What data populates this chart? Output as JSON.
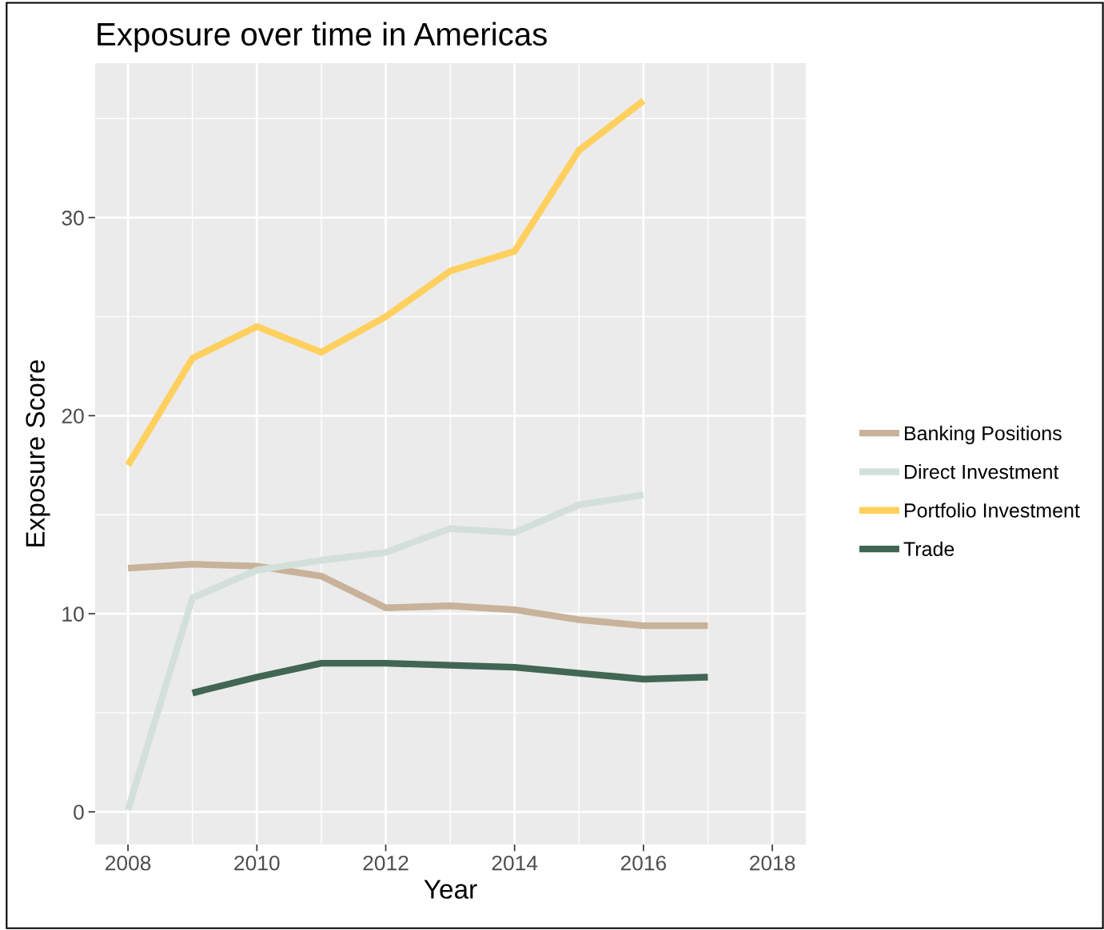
{
  "chart_data": {
    "type": "line",
    "title": "Exposure over time in Americas",
    "xlabel": "Year",
    "ylabel": "Exposure Score",
    "series": [
      {
        "name": "Banking Positions",
        "color": "#c8b29a",
        "x": [
          2008,
          2009,
          2010,
          2011,
          2012,
          2013,
          2014,
          2015,
          2016,
          2017
        ],
        "values": [
          12.3,
          12.5,
          12.4,
          11.9,
          10.3,
          10.4,
          10.2,
          9.7,
          9.4,
          9.4
        ]
      },
      {
        "name": "Direct Investment",
        "color": "#d3dfdb",
        "x": [
          2008,
          2009,
          2010,
          2011,
          2012,
          2013,
          2014,
          2015,
          2016
        ],
        "values": [
          0.1,
          10.8,
          12.2,
          12.7,
          13.1,
          14.3,
          14.1,
          15.5,
          16.0
        ]
      },
      {
        "name": "Portfolio Investment",
        "color": "#ffd05e",
        "x": [
          2008,
          2009,
          2010,
          2011,
          2012,
          2013,
          2014,
          2015,
          2016
        ],
        "values": [
          17.5,
          22.9,
          24.5,
          23.2,
          25.0,
          27.3,
          28.3,
          33.4,
          35.9
        ]
      },
      {
        "name": "Trade",
        "color": "#426654",
        "x": [
          2009,
          2010,
          2011,
          2012,
          2013,
          2014,
          2015,
          2016,
          2017
        ],
        "values": [
          6.0,
          6.8,
          7.5,
          7.5,
          7.4,
          7.3,
          7.0,
          6.7,
          6.8
        ]
      }
    ],
    "xlim": [
      2007.49,
      2018.52
    ],
    "ylim": [
      -1.65,
      37.8
    ],
    "xticks": [
      2008,
      2010,
      2012,
      2014,
      2016,
      2018
    ],
    "yticks": [
      0,
      10,
      20,
      30
    ],
    "grid": true,
    "legend": "right",
    "marker": "none",
    "line_style": "solid"
  }
}
